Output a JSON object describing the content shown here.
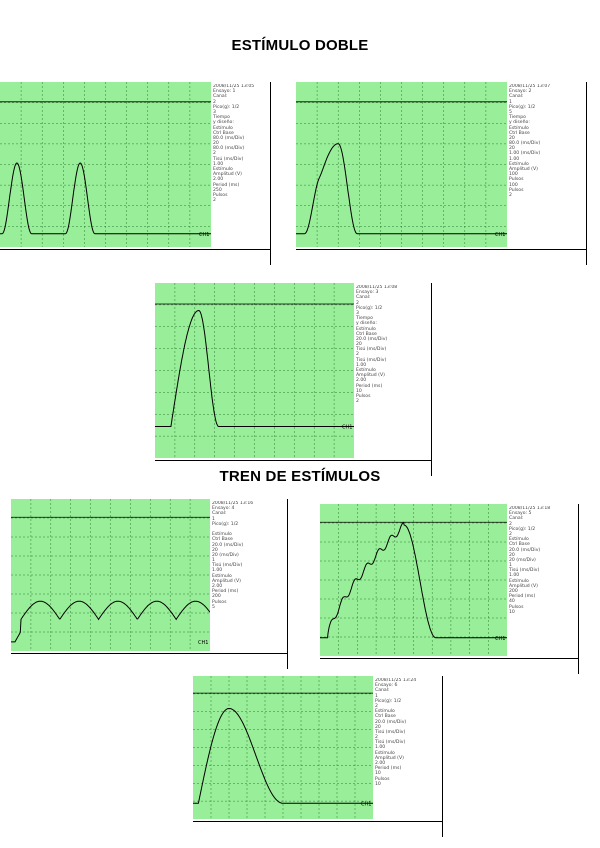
{
  "page": {
    "title_double": "ESTÍMULO DOBLE",
    "title_train": "TREN DE ESTÍMULOS"
  },
  "colors": {
    "screen": "#99ee99",
    "grid": "#2e7d32",
    "trace": "#000000"
  },
  "panels": [
    {
      "id": "double-1",
      "channel_tag": "CH1",
      "info": [
        "2008/11/25 13:05",
        "Ensayo: 1",
        "Canal:",
        "2",
        "Pico(g): 1/2",
        "3",
        "Tiempo",
        "y diseño:",
        "Estímulo",
        "Ctrl Base",
        "80.0 (ms/Div)",
        "20",
        "80.0 (ms/Div)",
        "2",
        "Tisú (ms/Div)",
        "1.00",
        "Estímulo",
        "Amplitud (V)",
        "2.00",
        "Period (ms)",
        "250",
        "Pulsos",
        "2"
      ],
      "trace": "double_sep"
    },
    {
      "id": "double-2",
      "channel_tag": "CH1",
      "info": [
        "2008/11/25 13:07",
        "Ensayo: 2",
        "Canal:",
        "1",
        "Pico(g): 1/2",
        "5",
        "Tiempo",
        "y diseño:",
        "Estímulo",
        "Ctrl Base",
        "20",
        "80.0 (ms/Div)",
        "20",
        "1.00 (ms/Div)",
        "1.00",
        "Estímulo",
        "Amplitud (V)",
        "100",
        "Pulsos",
        "100",
        "Pulsos",
        "2"
      ],
      "trace": "double_close"
    },
    {
      "id": "double-3",
      "channel_tag": "CH1",
      "info": [
        "2008/11/25 13:08",
        "Ensayo: 3",
        "Canal:",
        "2",
        "Pico(g): 1/2",
        "3",
        "Tiempo",
        "y diseño:",
        "Estímulo",
        "Ctrl Base",
        "20.0 (ms/Div)",
        "20",
        "Tisú (ms/Div)",
        "2",
        "Tisú (ms/Div)",
        "1.00",
        "Estímulo",
        "Amplitud (V)",
        "2.00",
        "Period (ms)",
        "10",
        "Pulsos",
        "2"
      ],
      "trace": "double_fused"
    },
    {
      "id": "train-1",
      "channel_tag": "CH1",
      "info": [
        "2008/11/25 13:16",
        "Ensayo: 4",
        "Canal:",
        "1",
        "Pico(g): 1/2",
        "",
        "Estímulo",
        "Ctrl Base",
        "20.0 (ms/Div)",
        "20",
        "20 (ms/Div)",
        "1",
        "Tisú (ms/Div)",
        "1.00",
        "Estímulo",
        "Amplitud (V)",
        "2.00",
        "Period (ms)",
        "200",
        "Pulsos",
        "5"
      ],
      "trace": "train_sep"
    },
    {
      "id": "train-2",
      "channel_tag": "CH1",
      "info": [
        "2008/11/25 13:18",
        "Ensayo: 5",
        "Canal:",
        "2",
        "Pico(g): 1/2",
        "2",
        "Estímulo",
        "Ctrl Base",
        "20.0 (ms/Div)",
        "20",
        "20 (ms/Div)",
        "1",
        "Tisú (ms/Div)",
        "1.00",
        "Estímulo",
        "Amplitud (V)",
        "200",
        "Period (ms)",
        "40",
        "Pulsos",
        "10"
      ],
      "trace": "train_incomplete"
    },
    {
      "id": "train-3",
      "channel_tag": "CH1",
      "info": [
        "2008/11/25 13:24",
        "Ensayo: 6",
        "Canal:",
        "1",
        "Pico(g): 1/2",
        "2",
        "Estímulo",
        "Ctrl Base",
        "20.0 (ms/Div)",
        "20",
        "Tisú (ms/Div)",
        "2",
        "Tisú (ms/Div)",
        "1.00",
        "Estímulo",
        "Amplitud (V)",
        "2.00",
        "Period (ms)",
        "10",
        "Pulsos",
        "10"
      ],
      "trace": "train_complete"
    }
  ]
}
